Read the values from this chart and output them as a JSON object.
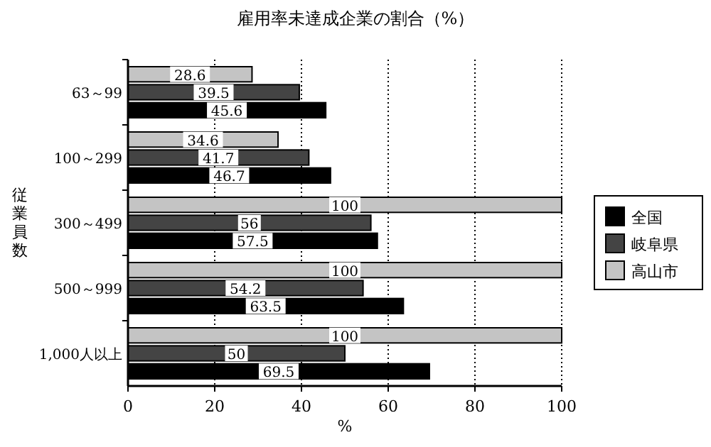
{
  "chart_data": {
    "type": "bar",
    "orientation": "horizontal",
    "title": "雇用率未達成企業の割合（%）",
    "xlabel": "%",
    "ylabel": "従業員数",
    "categories": [
      "63～99",
      "100～299",
      "300～499",
      "500～999",
      "1,000人以上"
    ],
    "series": [
      {
        "name": "全国",
        "color": "#000000",
        "values": [
          45.6,
          46.7,
          57.5,
          63.5,
          69.5
        ]
      },
      {
        "name": "岐阜県",
        "color": "#444444",
        "values": [
          39.5,
          41.7,
          56,
          54.2,
          50
        ]
      },
      {
        "name": "高山市",
        "color": "#c4c4c4",
        "values": [
          28.6,
          34.6,
          100,
          100,
          100
        ]
      }
    ],
    "xlim": [
      0,
      100
    ],
    "xticks": [
      0,
      20,
      40,
      60,
      80,
      100
    ],
    "grid": "x",
    "legend": "right",
    "data_labels": true
  }
}
